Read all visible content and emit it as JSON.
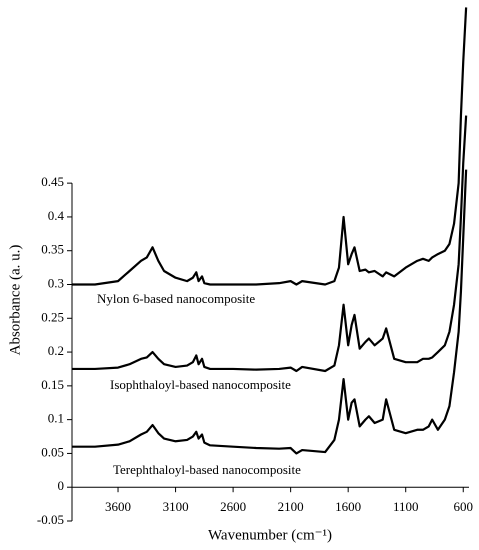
{
  "chart_data": {
    "type": "line",
    "xlabel": "Wavenumber (cm⁻¹)",
    "ylabel": "Absorbance (a. u.)",
    "annotations": [
      "Nylon 6-based nanocomposite",
      "Isophthaloyl-based nanocomposite",
      "Terephthaloyl-based nanocomposite"
    ],
    "xlim": [
      4000,
      550
    ],
    "xticks": [
      3600,
      3100,
      2600,
      2100,
      1600,
      1100,
      600
    ],
    "ylim": [
      -0.05,
      0.72
    ],
    "yticks": [
      -0.05,
      0,
      0.05,
      0.1,
      0.15,
      0.2,
      0.25,
      0.3,
      0.35,
      0.4,
      0.45
    ],
    "x": [
      4000,
      3800,
      3600,
      3500,
      3400,
      3350,
      3300,
      3250,
      3200,
      3100,
      3000,
      2950,
      2920,
      2900,
      2870,
      2850,
      2800,
      2600,
      2400,
      2200,
      2100,
      2050,
      2000,
      1800,
      1720,
      1680,
      1640,
      1600,
      1570,
      1545,
      1500,
      1450,
      1420,
      1370,
      1300,
      1270,
      1200,
      1100,
      1000,
      950,
      900,
      870,
      820,
      760,
      720,
      680,
      640,
      620,
      600,
      575
    ],
    "series": [
      {
        "name": "Nylon 6-based nanocomposite",
        "color": "#000000",
        "values": [
          0.3,
          0.3,
          0.305,
          0.32,
          0.335,
          0.34,
          0.355,
          0.335,
          0.32,
          0.31,
          0.305,
          0.31,
          0.318,
          0.305,
          0.312,
          0.302,
          0.3,
          0.3,
          0.3,
          0.302,
          0.305,
          0.3,
          0.305,
          0.3,
          0.305,
          0.325,
          0.4,
          0.33,
          0.345,
          0.355,
          0.32,
          0.322,
          0.318,
          0.32,
          0.312,
          0.318,
          0.312,
          0.325,
          0.335,
          0.338,
          0.335,
          0.34,
          0.345,
          0.35,
          0.36,
          0.39,
          0.45,
          0.55,
          0.63,
          0.71
        ]
      },
      {
        "name": "Isophthaloyl-based nanocomposite",
        "color": "#000000",
        "values": [
          0.175,
          0.175,
          0.177,
          0.182,
          0.19,
          0.192,
          0.2,
          0.19,
          0.182,
          0.178,
          0.18,
          0.185,
          0.195,
          0.182,
          0.19,
          0.178,
          0.175,
          0.175,
          0.174,
          0.175,
          0.177,
          0.172,
          0.178,
          0.172,
          0.18,
          0.21,
          0.27,
          0.21,
          0.24,
          0.255,
          0.205,
          0.215,
          0.22,
          0.21,
          0.22,
          0.235,
          0.19,
          0.185,
          0.185,
          0.19,
          0.19,
          0.192,
          0.2,
          0.21,
          0.23,
          0.27,
          0.33,
          0.4,
          0.48,
          0.55
        ]
      },
      {
        "name": "Terephthaloyl-based nanocomposite",
        "color": "#000000",
        "values": [
          0.06,
          0.06,
          0.063,
          0.068,
          0.078,
          0.082,
          0.092,
          0.08,
          0.072,
          0.068,
          0.07,
          0.075,
          0.082,
          0.072,
          0.078,
          0.066,
          0.062,
          0.06,
          0.058,
          0.057,
          0.058,
          0.05,
          0.055,
          0.052,
          0.07,
          0.1,
          0.16,
          0.1,
          0.125,
          0.13,
          0.09,
          0.1,
          0.105,
          0.095,
          0.1,
          0.13,
          0.085,
          0.08,
          0.085,
          0.085,
          0.09,
          0.1,
          0.085,
          0.1,
          0.12,
          0.17,
          0.23,
          0.29,
          0.37,
          0.47
        ]
      }
    ]
  }
}
